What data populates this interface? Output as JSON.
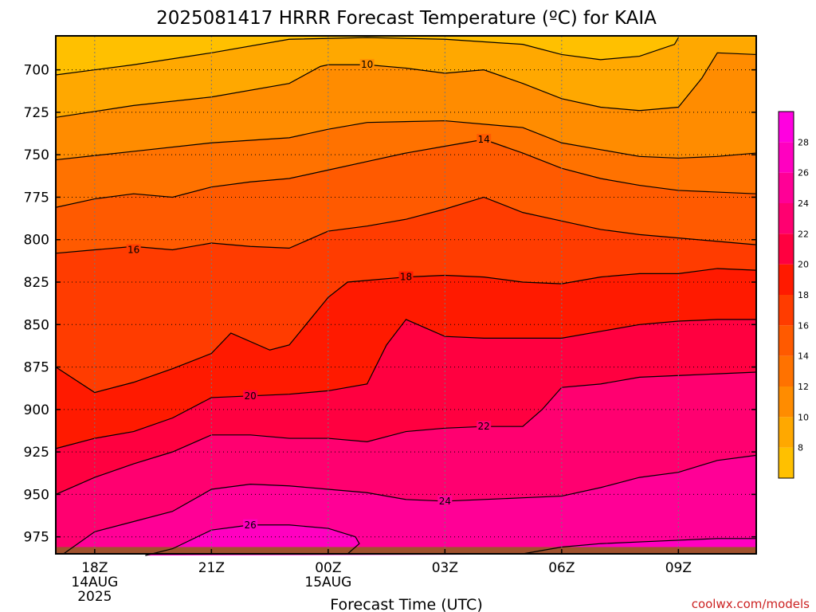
{
  "chart_data": {
    "type": "contour",
    "title": "2025081417 HRRR Forecast Temperature (ºC) for KAIA",
    "xlabel": "Forecast Time (UTC)",
    "ylabel": "",
    "credit": "coolwx.com/models",
    "x_ticks": [
      {
        "hour": 0,
        "lines": [
          "18Z",
          "14AUG",
          "2025"
        ]
      },
      {
        "hour": 3,
        "lines": [
          "21Z"
        ]
      },
      {
        "hour": 6,
        "lines": [
          "00Z",
          "15AUG"
        ]
      },
      {
        "hour": 9,
        "lines": [
          "03Z"
        ]
      },
      {
        "hour": 12,
        "lines": [
          "06Z"
        ]
      },
      {
        "hour": 15,
        "lines": [
          "09Z"
        ]
      }
    ],
    "xlim_hours": [
      -1,
      17
    ],
    "y_ticks": [
      700,
      725,
      750,
      775,
      800,
      825,
      850,
      875,
      900,
      925,
      950,
      975
    ],
    "ylim_hPa": [
      680,
      985
    ],
    "y_scale": "linear, inverted",
    "grid": true,
    "colorbar": {
      "ticks": [
        8,
        10,
        12,
        14,
        16,
        18,
        20,
        22,
        24,
        26,
        28
      ],
      "range": [
        6,
        30
      ],
      "colors": [
        {
          "min": 6,
          "max": 8,
          "color": "#ffc000"
        },
        {
          "min": 8,
          "max": 10,
          "color": "#ffa800"
        },
        {
          "min": 10,
          "max": 12,
          "color": "#ff8c00"
        },
        {
          "min": 12,
          "max": 14,
          "color": "#ff7200"
        },
        {
          "min": 14,
          "max": 16,
          "color": "#ff5a00"
        },
        {
          "min": 16,
          "max": 18,
          "color": "#ff3c00"
        },
        {
          "min": 18,
          "max": 20,
          "color": "#ff1a00"
        },
        {
          "min": 20,
          "max": 22,
          "color": "#ff0040"
        },
        {
          "min": 22,
          "max": 24,
          "color": "#ff0070"
        },
        {
          "min": 24,
          "max": 26,
          "color": "#ff0096"
        },
        {
          "min": 26,
          "max": 28,
          "color": "#ff00c0"
        },
        {
          "min": 28,
          "max": 30,
          "color": "#ff00e0"
        }
      ]
    },
    "ground_color": "#a0522d",
    "contours": [
      {
        "level": 8,
        "label_at": null,
        "points": [
          [
            -1,
            703
          ],
          [
            1,
            697
          ],
          [
            3,
            690
          ],
          [
            5,
            682
          ],
          [
            7,
            681
          ],
          [
            9,
            682
          ],
          [
            11,
            685
          ],
          [
            12,
            691
          ],
          [
            13,
            694
          ],
          [
            14,
            692
          ],
          [
            14.9,
            685
          ],
          [
            15,
            681
          ]
        ]
      },
      {
        "level": 10,
        "label_at": [
          7,
          697
        ],
        "points": [
          [
            -1,
            728
          ],
          [
            1,
            721
          ],
          [
            3,
            716
          ],
          [
            5,
            708
          ],
          [
            5.8,
            698
          ],
          [
            6,
            697
          ],
          [
            7,
            697
          ],
          [
            8,
            699
          ],
          [
            9,
            702
          ],
          [
            10,
            700
          ],
          [
            11,
            708
          ],
          [
            12,
            717
          ],
          [
            13,
            722
          ],
          [
            14,
            724
          ],
          [
            15,
            722
          ],
          [
            15.6,
            705
          ],
          [
            16,
            690
          ],
          [
            17,
            691
          ]
        ]
      },
      {
        "level": 12,
        "label_at": null,
        "points": [
          [
            -1,
            753
          ],
          [
            1,
            748
          ],
          [
            3,
            743
          ],
          [
            5,
            740
          ],
          [
            6,
            735
          ],
          [
            7,
            731
          ],
          [
            9,
            730
          ],
          [
            11,
            734
          ],
          [
            12,
            743
          ],
          [
            13,
            747
          ],
          [
            14,
            751
          ],
          [
            15,
            752
          ],
          [
            16,
            751
          ],
          [
            17,
            749
          ]
        ]
      },
      {
        "level": 14,
        "label_at": [
          10,
          741
        ],
        "points": [
          [
            -1,
            781
          ],
          [
            0,
            776
          ],
          [
            1,
            773
          ],
          [
            2,
            775
          ],
          [
            3,
            769
          ],
          [
            4,
            766
          ],
          [
            5,
            764
          ],
          [
            6,
            759
          ],
          [
            7,
            754
          ],
          [
            8,
            749
          ],
          [
            9,
            745
          ],
          [
            10,
            741
          ],
          [
            11,
            749
          ],
          [
            12,
            758
          ],
          [
            13,
            764
          ],
          [
            14,
            768
          ],
          [
            15,
            771
          ],
          [
            16,
            772
          ],
          [
            17,
            773
          ]
        ]
      },
      {
        "level": 16,
        "label_at": [
          1,
          806
        ],
        "points": [
          [
            -1,
            808
          ],
          [
            0,
            806
          ],
          [
            1,
            804
          ],
          [
            2,
            806
          ],
          [
            3,
            802
          ],
          [
            4,
            804
          ],
          [
            5,
            805
          ],
          [
            6,
            795
          ],
          [
            7,
            792
          ],
          [
            8,
            788
          ],
          [
            9,
            782
          ],
          [
            10,
            775
          ],
          [
            11,
            784
          ],
          [
            12,
            789
          ],
          [
            13,
            794
          ],
          [
            14,
            797
          ],
          [
            15,
            799
          ],
          [
            16,
            801
          ],
          [
            17,
            803
          ]
        ]
      },
      {
        "level": 18,
        "label_at": [
          8,
          822
        ],
        "points": [
          [
            -1,
            875
          ],
          [
            0,
            890
          ],
          [
            1,
            884
          ],
          [
            2,
            876
          ],
          [
            3,
            867
          ],
          [
            3.5,
            855
          ],
          [
            4.5,
            865
          ],
          [
            5,
            862
          ],
          [
            6,
            834
          ],
          [
            6.5,
            825
          ],
          [
            7,
            824
          ],
          [
            8,
            822
          ],
          [
            9,
            821
          ],
          [
            10,
            822
          ],
          [
            11,
            825
          ],
          [
            12,
            826
          ],
          [
            13,
            822
          ],
          [
            14,
            820
          ],
          [
            15,
            820
          ],
          [
            16,
            817
          ],
          [
            17,
            818
          ]
        ]
      },
      {
        "level": 20,
        "label_at": [
          4,
          892
        ],
        "points": [
          [
            -1,
            923
          ],
          [
            0,
            917
          ],
          [
            1,
            913
          ],
          [
            2,
            905
          ],
          [
            3,
            893
          ],
          [
            4,
            892
          ],
          [
            5,
            891
          ],
          [
            6,
            889
          ],
          [
            7,
            885
          ],
          [
            7.5,
            862
          ],
          [
            8,
            847
          ],
          [
            9,
            857
          ],
          [
            10,
            858
          ],
          [
            11,
            858
          ],
          [
            12,
            858
          ],
          [
            13,
            854
          ],
          [
            14,
            850
          ],
          [
            15,
            848
          ],
          [
            16,
            847
          ],
          [
            17,
            847
          ]
        ]
      },
      {
        "level": 22,
        "label_at": [
          10,
          910
        ],
        "points": [
          [
            -1,
            950
          ],
          [
            0,
            940
          ],
          [
            1,
            932
          ],
          [
            2,
            925
          ],
          [
            3,
            915
          ],
          [
            4,
            915
          ],
          [
            5,
            917
          ],
          [
            6,
            917
          ],
          [
            7,
            919
          ],
          [
            8,
            913
          ],
          [
            9,
            911
          ],
          [
            10,
            910
          ],
          [
            11,
            910
          ],
          [
            11.5,
            900
          ],
          [
            12,
            887
          ],
          [
            13,
            885
          ],
          [
            14,
            881
          ],
          [
            15,
            880
          ],
          [
            16,
            879
          ],
          [
            17,
            878
          ]
        ]
      },
      {
        "level": 24,
        "label_at": [
          9,
          954
        ],
        "points": [
          [
            -0.8,
            985
          ],
          [
            0,
            972
          ],
          [
            1,
            966
          ],
          [
            2,
            960
          ],
          [
            3,
            947
          ],
          [
            4,
            944
          ],
          [
            5,
            945
          ],
          [
            6,
            947
          ],
          [
            7,
            949
          ],
          [
            8,
            953
          ],
          [
            9,
            954
          ],
          [
            10,
            953
          ],
          [
            11,
            952
          ],
          [
            12,
            951
          ],
          [
            13,
            946
          ],
          [
            14,
            940
          ],
          [
            15,
            937
          ],
          [
            16,
            930
          ],
          [
            17,
            927
          ]
        ]
      },
      {
        "level": 26,
        "label_at": [
          4,
          968
        ],
        "points": [
          [
            1.3,
            986
          ],
          [
            2,
            982
          ],
          [
            3,
            971
          ],
          [
            4,
            968
          ],
          [
            5,
            968
          ],
          [
            6,
            970
          ],
          [
            6.7,
            975
          ],
          [
            6.8,
            979
          ],
          [
            6.5,
            985
          ]
        ]
      },
      {
        "level": 26,
        "label_at": null,
        "points": [
          [
            11,
            985
          ],
          [
            12,
            981
          ],
          [
            13,
            979
          ],
          [
            14,
            978
          ],
          [
            15,
            977
          ],
          [
            16,
            976
          ],
          [
            17,
            976
          ]
        ]
      }
    ]
  }
}
